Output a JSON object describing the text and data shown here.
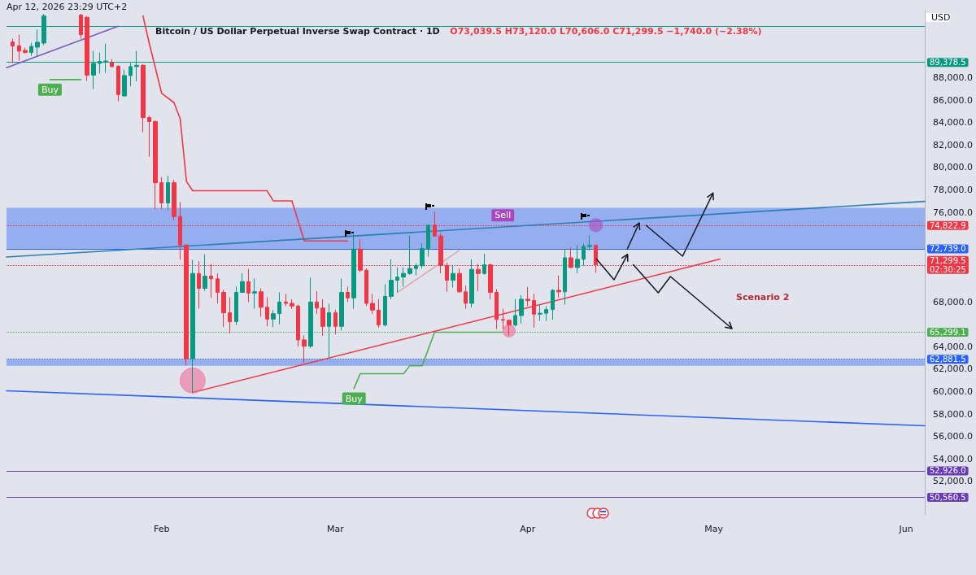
{
  "chart_data": {
    "type": "candlestick",
    "title": "Bitcoin / US Dollar Perpetual Inverse Swap Contract · 1D",
    "subtitle": "O73,039.5 H73,120.0 L70,606.0 C71,299.5 −1,740.0 (−2.38%)",
    "ylabel": "USD",
    "x": [
      "2026-01-08",
      "2026-01-09",
      "2026-01-10",
      "2026-01-11",
      "2026-01-12",
      "2026-01-13",
      "2026-01-19",
      "2026-01-20",
      "2026-01-21",
      "2026-01-22",
      "2026-01-23",
      "2026-01-24",
      "2026-01-25",
      "2026-01-26",
      "2026-01-27",
      "2026-01-28",
      "2026-01-29",
      "2026-01-30",
      "2026-01-31",
      "2026-02-01",
      "2026-02-02",
      "2026-02-03",
      "2026-02-04",
      "2026-02-05",
      "2026-02-06",
      "2026-02-07",
      "2026-02-08",
      "2026-02-09",
      "2026-02-10",
      "2026-02-11",
      "2026-02-12",
      "2026-02-13",
      "2026-02-14",
      "2026-02-15",
      "2026-02-16",
      "2026-02-17",
      "2026-02-18",
      "2026-02-19",
      "2026-02-20",
      "2026-02-21",
      "2026-02-22",
      "2026-02-23",
      "2026-02-24",
      "2026-02-25",
      "2026-02-26",
      "2026-02-27",
      "2026-02-28",
      "2026-03-01",
      "2026-03-02",
      "2026-03-03",
      "2026-03-04",
      "2026-03-05",
      "2026-03-06",
      "2026-03-07",
      "2026-03-08",
      "2026-03-09",
      "2026-03-10",
      "2026-03-11",
      "2026-03-12",
      "2026-03-13",
      "2026-03-14",
      "2026-03-15",
      "2026-03-16",
      "2026-03-17",
      "2026-03-18",
      "2026-03-19",
      "2026-03-20",
      "2026-03-21",
      "2026-03-22",
      "2026-03-23",
      "2026-03-24",
      "2026-03-25",
      "2026-03-26",
      "2026-03-27",
      "2026-03-28",
      "2026-03-29",
      "2026-03-30",
      "2026-03-31",
      "2026-04-01",
      "2026-04-02",
      "2026-04-03",
      "2026-04-04",
      "2026-04-05",
      "2026-04-06",
      "2026-04-07",
      "2026-04-08",
      "2026-04-09",
      "2026-04-10",
      "2026-04-11",
      "2026-04-12"
    ],
    "ohlc": [
      [
        91197,
        91490,
        89310,
        90835
      ],
      [
        90856,
        91850,
        89530,
        90377
      ],
      [
        90450,
        90690,
        90180,
        90254
      ],
      [
        90254,
        91125,
        89964,
        90813
      ],
      [
        90740,
        92308,
        89942,
        91176
      ],
      [
        91103,
        93700,
        90900,
        93520
      ],
      [
        93600,
        93700,
        91500,
        91850
      ],
      [
        93396,
        93520,
        87714,
        88244
      ],
      [
        88244,
        90400,
        86985,
        89289
      ],
      [
        89289,
        90254,
        88389,
        89460
      ],
      [
        89460,
        91050,
        88440,
        89500
      ],
      [
        89360,
        89670,
        88930,
        89000
      ],
      [
        89040,
        89100,
        85900,
        86500
      ],
      [
        86386,
        88730,
        86310,
        88200
      ],
      [
        88200,
        89310,
        87230,
        89000
      ],
      [
        89000,
        90400,
        87680,
        89115
      ],
      [
        89115,
        89200,
        83150,
        84450
      ],
      [
        84450,
        84600,
        80960,
        84090
      ],
      [
        84090,
        84200,
        76250,
        78640
      ],
      [
        78640,
        79150,
        76250,
        76830
      ],
      [
        76830,
        79250,
        76200,
        78640
      ],
      [
        78640,
        78900,
        75300,
        75620
      ],
      [
        75620,
        76900,
        71750,
        73080
      ],
      [
        73080,
        73100,
        62320,
        62920
      ],
      [
        62920,
        71750,
        59920,
        70540
      ],
      [
        70540,
        71625,
        67390,
        69210
      ],
      [
        69210,
        72240,
        68990,
        70300
      ],
      [
        70300,
        71390,
        68360,
        70060
      ],
      [
        70060,
        70540,
        67870,
        68850
      ],
      [
        68850,
        69090,
        65750,
        67030
      ],
      [
        67030,
        68410,
        65170,
        66230
      ],
      [
        66230,
        69370,
        65940,
        68850
      ],
      [
        68850,
        70540,
        68800,
        69810
      ],
      [
        69810,
        70950,
        67990,
        68790
      ],
      [
        68790,
        70100,
        67390,
        68910
      ],
      [
        68910,
        69210,
        66670,
        67520
      ],
      [
        67520,
        68410,
        65820,
        66470
      ],
      [
        66470,
        67270,
        65750,
        66950
      ],
      [
        66950,
        68850,
        66000,
        67990
      ],
      [
        67990,
        68720,
        67630,
        67870
      ],
      [
        67870,
        68240,
        67390,
        67630
      ],
      [
        67630,
        67760,
        64010,
        64610
      ],
      [
        64610,
        65020,
        62560,
        64050
      ],
      [
        64050,
        70170,
        63890,
        67990
      ],
      [
        67990,
        68970,
        66910,
        67450
      ],
      [
        67450,
        68240,
        64980,
        65820
      ],
      [
        65820,
        67830,
        63040,
        67030
      ],
      [
        67030,
        67300,
        65100,
        65820
      ],
      [
        65820,
        70080,
        65450,
        68850
      ],
      [
        68850,
        69370,
        68000,
        68360
      ],
      [
        68360,
        74050,
        67390,
        72720
      ],
      [
        72720,
        73560,
        70660,
        70830
      ],
      [
        70830,
        71000,
        67630,
        67870
      ],
      [
        67870,
        68720,
        66930,
        67270
      ],
      [
        67270,
        68240,
        65700,
        65940
      ],
      [
        65940,
        69580,
        65820,
        68490
      ],
      [
        68490,
        71800,
        68240,
        69930
      ],
      [
        69930,
        71080,
        68850,
        70220
      ],
      [
        70220,
        71080,
        69370,
        70540
      ],
      [
        70540,
        73920,
        70420,
        70980
      ],
      [
        70980,
        71440,
        70370,
        71230
      ],
      [
        71230,
        73240,
        70980,
        72760
      ],
      [
        72760,
        74870,
        72040,
        74850
      ],
      [
        74850,
        76050,
        73800,
        73880
      ],
      [
        73880,
        74170,
        70540,
        71260
      ],
      [
        71260,
        71510,
        68900,
        69930
      ],
      [
        69930,
        71300,
        69300,
        70540
      ],
      [
        70540,
        71000,
        68800,
        68900
      ],
      [
        68900,
        69450,
        67390,
        67880
      ],
      [
        67880,
        71800,
        67510,
        70900
      ],
      [
        70900,
        71390,
        68970,
        70540
      ],
      [
        70540,
        72310,
        70420,
        71310
      ],
      [
        71310,
        71400,
        68240,
        68850
      ],
      [
        68850,
        69140,
        65580,
        66430
      ],
      [
        66430,
        67390,
        65580,
        66360
      ],
      [
        66360,
        66430,
        64980,
        65940
      ],
      [
        65940,
        68240,
        65820,
        66790
      ],
      [
        66790,
        68610,
        66070,
        68240
      ],
      [
        68240,
        69330,
        67630,
        68120
      ],
      [
        68120,
        68720,
        65700,
        66910
      ],
      [
        66910,
        67760,
        66310,
        66990
      ],
      [
        66990,
        67630,
        66310,
        67320
      ],
      [
        67320,
        69140,
        66410,
        69040
      ],
      [
        69040,
        70350,
        68360,
        68900
      ],
      [
        68900,
        72670,
        67760,
        71940
      ],
      [
        71940,
        72910,
        71030,
        71070
      ],
      [
        71070,
        73080,
        70540,
        71800
      ],
      [
        71800,
        73200,
        71230,
        72960
      ],
      [
        72960,
        73930,
        72600,
        73039.5
      ],
      [
        73039.5,
        73120,
        70606,
        71299.5
      ]
    ],
    "colors": [
      "#f23645",
      "#f23645",
      "#f23645",
      "#089981",
      "#089981",
      "#089981",
      "#f23645",
      "#f23645",
      "#089981",
      "#089981",
      "#089981",
      "#f23645",
      "#f23645",
      "#089981",
      "#089981",
      "#089981",
      "#f23645",
      "#f23645",
      "#f23645",
      "#f23645",
      "#089981",
      "#f23645",
      "#f23645",
      "#f23645",
      "#089981",
      "#f23645",
      "#089981",
      "#f23645",
      "#f23645",
      "#f23645",
      "#f23645",
      "#089981",
      "#089981",
      "#f23645",
      "#089981",
      "#f23645",
      "#f23645",
      "#089981",
      "#089981",
      "#f23645",
      "#f23645",
      "#f23645",
      "#f23645",
      "#089981",
      "#f23645",
      "#f23645",
      "#089981",
      "#f23645",
      "#089981",
      "#f23645",
      "#089981",
      "#f23645",
      "#f23645",
      "#f23645",
      "#f23645",
      "#089981",
      "#089981",
      "#089981",
      "#089981",
      "#089981",
      "#089981",
      "#089981",
      "#089981",
      "#f23645",
      "#f23645",
      "#f23645",
      "#089981",
      "#f23645",
      "#f23645",
      "#089981",
      "#f23645",
      "#089981",
      "#f23645",
      "#f23645",
      "#f23645",
      "#f23645",
      "#089981",
      "#089981",
      "#f23645",
      "#f23645",
      "#089981",
      "#089981",
      "#089981",
      "#f23645",
      "#089981",
      "#f23645",
      "#089981",
      "#089981",
      "#089981",
      "#f23645"
    ],
    "series": [
      {
        "type": "line",
        "color": "#f23645",
        "x": [
          "2026-01-29",
          "2026-01-30",
          "2026-02-01",
          "2026-02-03",
          "2026-02-04",
          "2026-02-05",
          "2026-02-06",
          "2026-02-18",
          "2026-02-19",
          "2026-02-22",
          "2026-02-24",
          "2026-03-03"
        ],
        "values": [
          93520,
          91100,
          86630,
          85780,
          84330,
          78770,
          77920,
          77920,
          77020,
          77020,
          73440,
          73440
        ]
      },
      {
        "type": "line",
        "color": "#4caf50",
        "x": [
          "2026-01-14",
          "2026-01-19",
          "2026-02-15",
          "2026-03-04",
          "2026-03-05",
          "2026-03-12",
          "2026-03-13",
          "2026-03-15",
          "2026-03-17",
          "2026-03-28"
        ],
        "values": [
          87840,
          87840,
          null,
          60280,
          61590,
          61590,
          62310,
          62310,
          65299.1,
          65299.1
        ]
      },
      {
        "type": "line",
        "color": "#7e57c2",
        "x": [
          "2026-01-07",
          "2026-01-25"
        ],
        "values": [
          88900,
          92600
        ]
      },
      {
        "type": "line",
        "color": "#2a7fb5",
        "x": [
          "2026-01-07",
          "2026-06-04"
        ],
        "values": [
          72010,
          76970
        ]
      },
      {
        "type": "line",
        "color": "#f23645",
        "x": [
          "2026-02-06",
          "2026-05-02"
        ],
        "values": [
          59920,
          71820
        ]
      },
      {
        "type": "line",
        "color": "#2962ff",
        "x": [
          "2026-01-07",
          "2026-06-04"
        ],
        "values": [
          60070,
          56950
        ]
      },
      {
        "type": "line",
        "color": "#d9a3ab",
        "line_style": "dotted",
        "x": [
          "2026-03-11",
          "2026-03-21"
        ],
        "values": [
          68850,
          72600
        ]
      },
      {
        "type": "bubble",
        "color": "#f06292",
        "x": [
          "2026-02-06",
          "2026-03-29"
        ],
        "values": [
          60990,
          65410
        ],
        "sizes": [
          1,
          0.23
        ]
      },
      {
        "type": "bubble",
        "color": "#ab47bc",
        "x": [
          "2026-04-12"
        ],
        "values": [
          74850
        ],
        "sizes": [
          0.27
        ]
      }
    ],
    "xlim": [
      "2026-01-07",
      "2026-06-04"
    ],
    "xticks": [
      {
        "value": "2026-02-01",
        "label": "Feb"
      },
      {
        "value": "2026-03-01",
        "label": "Mar"
      },
      {
        "value": "2026-04-01",
        "label": "Apr"
      },
      {
        "value": "2026-05-01",
        "label": "May"
      },
      {
        "value": "2026-06-01",
        "label": "Jun"
      }
    ],
    "ylim": [
      49000,
      94000
    ],
    "yticks": [
      {
        "value": 52000,
        "label": "52,000.0"
      },
      {
        "value": 54000,
        "label": "54,000.0"
      },
      {
        "value": 56000,
        "label": "56,000.0"
      },
      {
        "value": 58000,
        "label": "58,000.0"
      },
      {
        "value": 60000,
        "label": "60,000.0"
      },
      {
        "value": 62000,
        "label": "62,000.0"
      },
      {
        "value": 64000,
        "label": "64,000.0"
      },
      {
        "value": 68000,
        "label": "68,000.0"
      },
      {
        "value": 76000,
        "label": "76,000.0"
      },
      {
        "value": 78000,
        "label": "78,000.0"
      },
      {
        "value": 80000,
        "label": "80,000.0"
      },
      {
        "value": 82000,
        "label": "82,000.0"
      },
      {
        "value": 84000,
        "label": "84,000.0"
      },
      {
        "value": 86000,
        "label": "86,000.0"
      },
      {
        "value": 88000,
        "label": "88,000.0"
      }
    ],
    "grid": false,
    "bands": [
      {
        "axis": "y",
        "from": 72739,
        "to": 76400,
        "color": "#7b9cf0"
      },
      {
        "axis": "y",
        "from": 62300,
        "to": 62881.5,
        "color": "#7b9cf0"
      }
    ],
    "ref_lines": [
      {
        "axis": "y",
        "value": 92630,
        "color": "#089981"
      },
      {
        "axis": "y",
        "value": 89378.5,
        "label": "89,378.5",
        "color": "#089981"
      },
      {
        "axis": "y",
        "value": 74822.9,
        "label": "74,822.9",
        "color": "#f23645",
        "line_style": "dotted"
      },
      {
        "axis": "y",
        "value": 72739.0,
        "label": "72,739.0",
        "color": "#2962ff"
      },
      {
        "axis": "y",
        "value": 71299.5,
        "label": "71,299.5\n02:30:25",
        "color": "#f23645",
        "line_style": "dotted"
      },
      {
        "axis": "y",
        "value": 65299.1,
        "label": "65,299.1",
        "color": "#4caf50",
        "line_style": "dotted"
      },
      {
        "axis": "y",
        "value": 62881.5,
        "label": "62,881.5",
        "color": "#2962ff",
        "line_style": "dotted"
      },
      {
        "axis": "y",
        "value": 52926.0,
        "label": "52,926.0",
        "color": "#673ab7"
      },
      {
        "axis": "y",
        "value": 50560.5,
        "label": "50,560.5",
        "color": "#673ab7"
      }
    ],
    "annotations": [
      "Apr 12, 2026 23:29 UTC+2",
      {
        "text": "Buy",
        "x": "2026-01-14",
        "y": 87840
      },
      {
        "text": "Buy",
        "x": "2026-03-04",
        "y": 60280
      },
      {
        "text": "Sell",
        "x": "2026-03-28",
        "y": 74822.9
      },
      "Scenario 2"
    ]
  }
}
